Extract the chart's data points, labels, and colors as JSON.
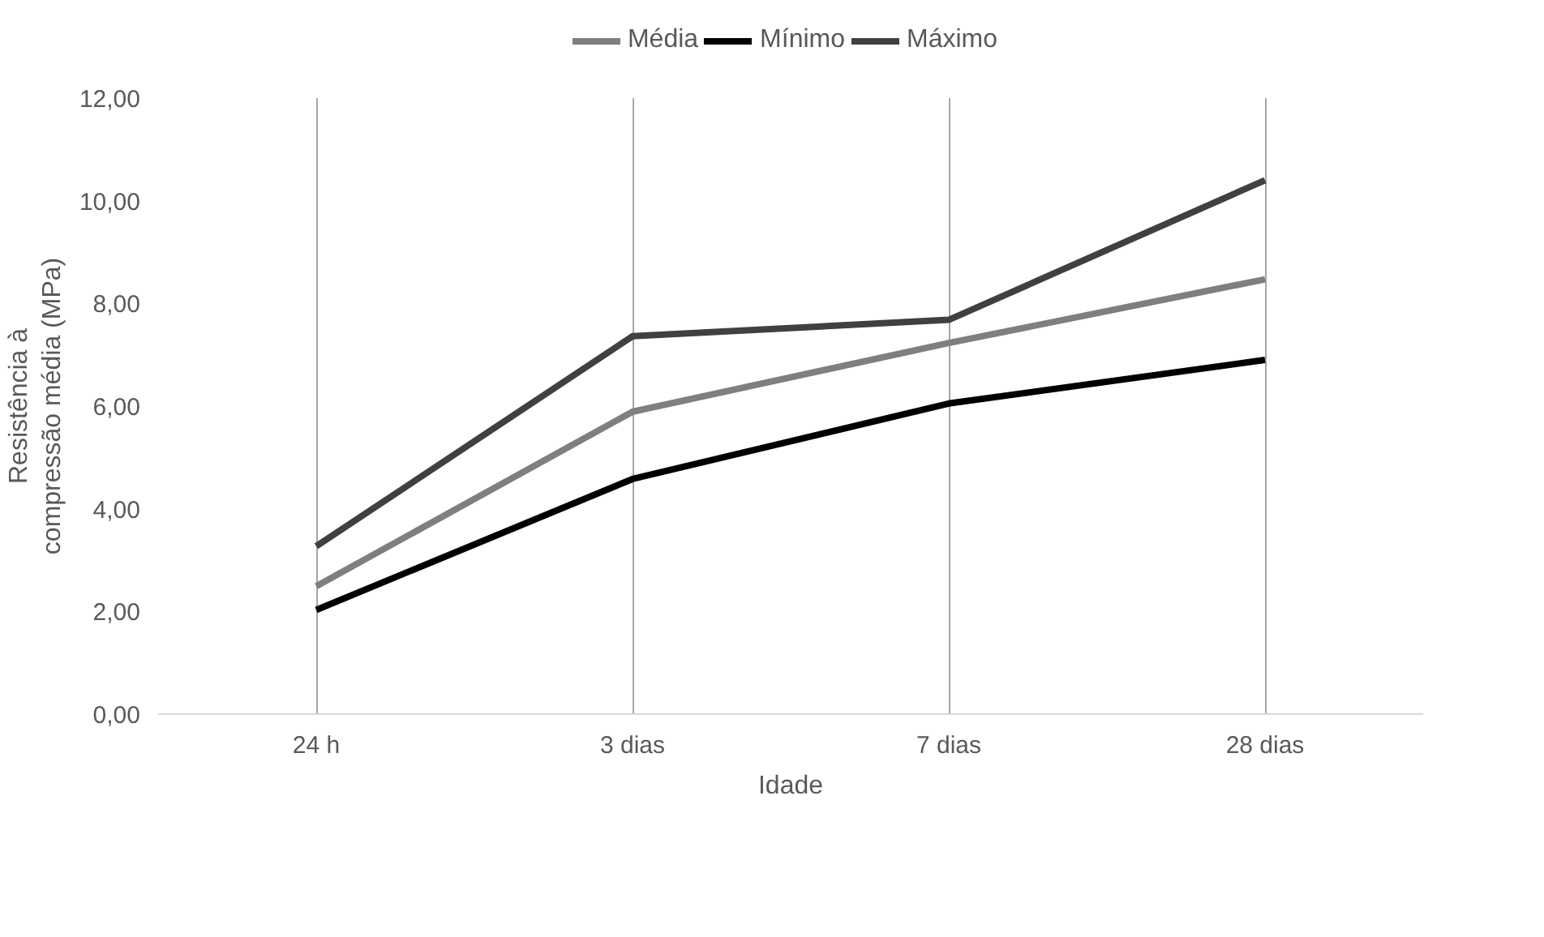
{
  "chart_data": {
    "type": "line",
    "xlabel": "Idade",
    "ylabel": "Resistência à compressão média (MPa)",
    "categories": [
      "24 h",
      "3 dias",
      "7 dias",
      "28 dias"
    ],
    "series": [
      {
        "name": "Média",
        "color": "#7f7f7f",
        "values": [
          2.49,
          5.89,
          7.23,
          8.47
        ]
      },
      {
        "name": "Mínimo",
        "color": "#000000",
        "values": [
          2.03,
          4.58,
          6.05,
          6.9
        ]
      },
      {
        "name": "Máximo",
        "color": "#404040",
        "values": [
          3.27,
          7.36,
          7.68,
          10.4
        ]
      }
    ],
    "ylim": [
      0,
      12
    ],
    "yticks": [
      {
        "value": 0,
        "label": "0,00"
      },
      {
        "value": 2,
        "label": "2,00"
      },
      {
        "value": 4,
        "label": "4,00"
      },
      {
        "value": 6,
        "label": "6,00"
      },
      {
        "value": 8,
        "label": "8,00"
      },
      {
        "value": 10,
        "label": "10,00"
      },
      {
        "value": 12,
        "label": "12,00"
      }
    ],
    "grid": "x",
    "legend": "top",
    "marker": "none",
    "line_style": "solid"
  }
}
